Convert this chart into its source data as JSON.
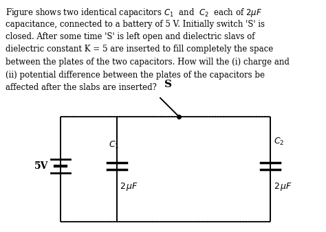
{
  "text_line1": "Figure shows two identical capacitors $C_1$  and  $C_2$  each of $2\\mu F$",
  "text_line2": "capacitance, connected to a battery of 5 V. Initially switch 'S' is",
  "text_line3": "closed. After some time 'S' is left open and dielectric slavs of",
  "text_line4": "dielectric constant K = 5 are inserted to fill completely the space",
  "text_line5": "between the plates of the two capacitors. How will the (i) charge and",
  "text_line6": "(ii) potential difference between the plates of the capacitors be",
  "text_line7": "affected after the slabs are inserted?",
  "battery_label": "5V",
  "c1_label": "$C_1$",
  "c2_label": "$C_2$",
  "cap1_value": "$2\\,\\mu F$",
  "cap2_value": "$2\\,\\mu F$",
  "switch_label": "S",
  "bg_color": "#ffffff",
  "line_color": "#000000",
  "fig_width": 4.74,
  "fig_height": 3.38,
  "dpi": 100
}
